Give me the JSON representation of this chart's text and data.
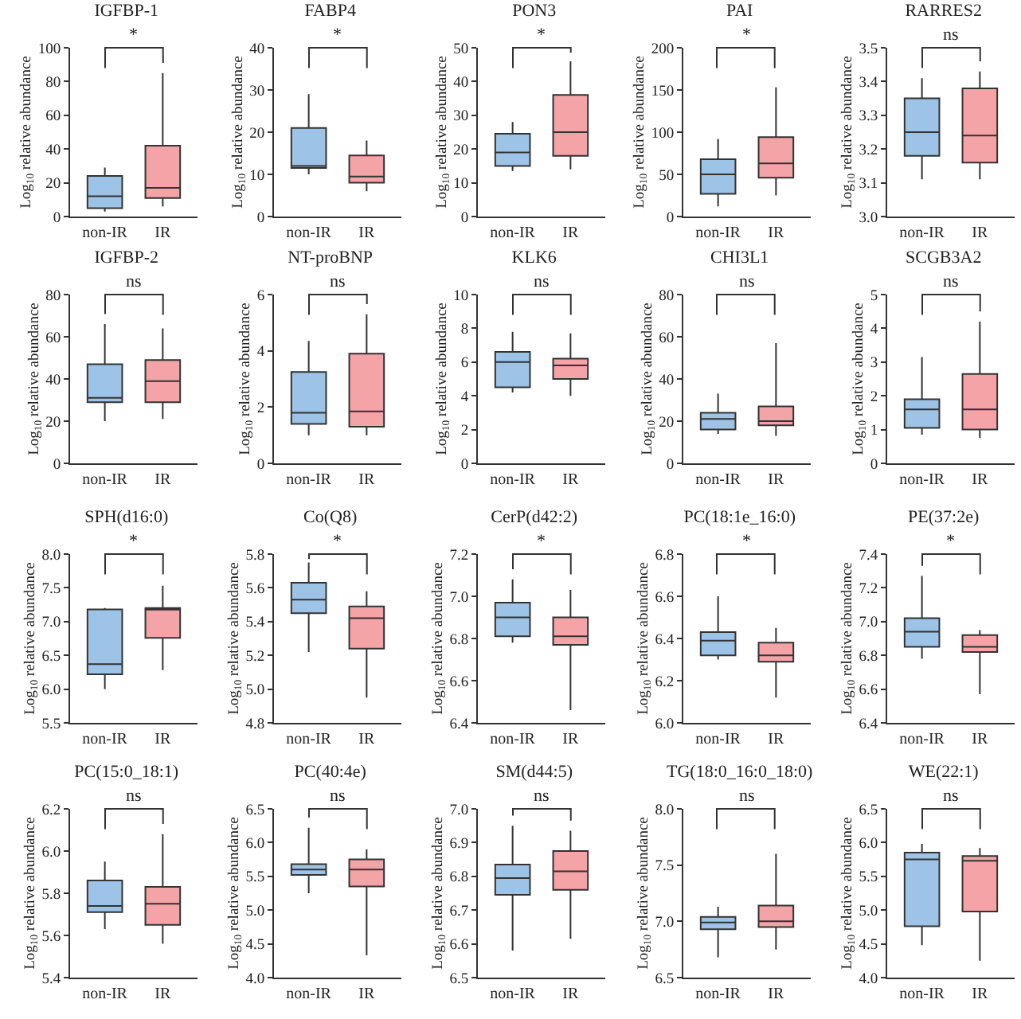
{
  "chart_data": [
    {
      "type": "box",
      "title": "IGFBP-1",
      "ylabel": "Log$_{10}$ relative abundance",
      "categories": [
        "non-IR",
        "IR"
      ],
      "colors": [
        "#9dc3e6",
        "#f4a3a6"
      ],
      "ylim": [
        0,
        100
      ],
      "yticks": [
        0,
        20,
        40,
        60,
        80,
        100
      ],
      "annotations": [
        "*"
      ],
      "boxes": [
        {
          "low": 3,
          "q1": 5,
          "median": 12,
          "q3": 24,
          "high": 29
        },
        {
          "low": 6,
          "q1": 11,
          "median": 17,
          "q3": 42,
          "high": 85
        }
      ]
    },
    {
      "type": "box",
      "title": "FABP4",
      "ylabel": "Log$_{10}$ relative abundance",
      "categories": [
        "non-IR",
        "IR"
      ],
      "colors": [
        "#9dc3e6",
        "#f4a3a6"
      ],
      "ylim": [
        0,
        40
      ],
      "yticks": [
        0,
        10,
        20,
        30,
        40
      ],
      "annotations": [
        "*"
      ],
      "boxes": [
        {
          "low": 10,
          "q1": 11.5,
          "median": 12,
          "q3": 21,
          "high": 29
        },
        {
          "low": 6,
          "q1": 8,
          "median": 9.5,
          "q3": 14.5,
          "high": 18
        }
      ]
    },
    {
      "type": "box",
      "title": "PON3",
      "ylabel": "Log$_{10}$ relative abundance",
      "categories": [
        "non-IR",
        "IR"
      ],
      "colors": [
        "#9dc3e6",
        "#f4a3a6"
      ],
      "ylim": [
        0,
        50
      ],
      "yticks": [
        0,
        10,
        20,
        30,
        40,
        50
      ],
      "annotations": [
        "*"
      ],
      "boxes": [
        {
          "low": 13.5,
          "q1": 15,
          "median": 19,
          "q3": 24.5,
          "high": 28
        },
        {
          "low": 14,
          "q1": 18,
          "median": 25,
          "q3": 36,
          "high": 46
        }
      ]
    },
    {
      "type": "box",
      "title": "PAI",
      "ylabel": "Log$_{10}$ relative abundance",
      "categories": [
        "non-IR",
        "IR"
      ],
      "colors": [
        "#9dc3e6",
        "#f4a3a6"
      ],
      "ylim": [
        0,
        200
      ],
      "yticks": [
        0,
        50,
        100,
        150,
        200
      ],
      "annotations": [
        "*"
      ],
      "boxes": [
        {
          "low": 12,
          "q1": 27,
          "median": 50,
          "q3": 68,
          "high": 92
        },
        {
          "low": 25,
          "q1": 46,
          "median": 63,
          "q3": 94,
          "high": 153
        }
      ]
    },
    {
      "type": "box",
      "title": "RARRES2",
      "ylabel": "Log$_{10}$ relative abundance",
      "categories": [
        "non-IR",
        "IR"
      ],
      "colors": [
        "#9dc3e6",
        "#f4a3a6"
      ],
      "ylim": [
        3.0,
        3.5
      ],
      "yticks": [
        {
          "value": 3.0,
          "label": "3.0"
        },
        3.1,
        3.2,
        3.3,
        3.4,
        3.5
      ],
      "annotations": [
        "ns"
      ],
      "boxes": [
        {
          "low": 3.11,
          "q1": 3.18,
          "median": 3.25,
          "q3": 3.35,
          "high": 3.41
        },
        {
          "low": 3.11,
          "q1": 3.16,
          "median": 3.24,
          "q3": 3.38,
          "high": 3.43
        }
      ]
    },
    {
      "type": "box",
      "title": "IGFBP-2",
      "ylabel": "Log$_{10}$ relative abundance",
      "categories": [
        "non-IR",
        "IR"
      ],
      "colors": [
        "#9dc3e6",
        "#f4a3a6"
      ],
      "ylim": [
        0,
        80
      ],
      "yticks": [
        0,
        20,
        40,
        60,
        80
      ],
      "annotations": [
        "ns"
      ],
      "boxes": [
        {
          "low": 20,
          "q1": 29,
          "median": 31,
          "q3": 47,
          "high": 66
        },
        {
          "low": 21,
          "q1": 29,
          "median": 39,
          "q3": 49,
          "high": 64
        }
      ]
    },
    {
      "type": "box",
      "title": "NT-proBNP",
      "ylabel": "Log$_{10}$ relative abundance",
      "categories": [
        "non-IR",
        "IR"
      ],
      "colors": [
        "#9dc3e6",
        "#f4a3a6"
      ],
      "ylim": [
        0,
        6
      ],
      "yticks": [
        0,
        2,
        4,
        6
      ],
      "annotations": [
        "ns"
      ],
      "boxes": [
        {
          "low": 1.0,
          "q1": 1.4,
          "median": 1.8,
          "q3": 3.25,
          "high": 4.35
        },
        {
          "low": 1.0,
          "q1": 1.3,
          "median": 1.85,
          "q3": 3.9,
          "high": 5.3
        }
      ]
    },
    {
      "type": "box",
      "title": "KLK6",
      "ylabel": "Log$_{10}$ relative abundance",
      "categories": [
        "non-IR",
        "IR"
      ],
      "colors": [
        "#9dc3e6",
        "#f4a3a6"
      ],
      "ylim": [
        0,
        10
      ],
      "yticks": [
        0,
        2,
        4,
        6,
        8,
        10
      ],
      "annotations": [
        "ns"
      ],
      "boxes": [
        {
          "low": 4.2,
          "q1": 4.5,
          "median": 6.0,
          "q3": 6.6,
          "high": 7.8
        },
        {
          "low": 4.0,
          "q1": 5.0,
          "median": 5.8,
          "q3": 6.2,
          "high": 7.7
        }
      ]
    },
    {
      "type": "box",
      "title": "CHI3L1",
      "ylabel": "Log$_{10}$ relative abundance",
      "categories": [
        "non-IR",
        "IR"
      ],
      "colors": [
        "#9dc3e6",
        "#f4a3a6"
      ],
      "ylim": [
        0,
        80
      ],
      "yticks": [
        0,
        20,
        40,
        60,
        80
      ],
      "annotations": [
        "ns"
      ],
      "boxes": [
        {
          "low": 14,
          "q1": 16,
          "median": 21,
          "q3": 24,
          "high": 33
        },
        {
          "low": 13,
          "q1": 18,
          "median": 20,
          "q3": 27,
          "high": 57
        }
      ]
    },
    {
      "type": "box",
      "title": "SCGB3A2",
      "ylabel": "Log$_{10}$ relative abundance",
      "categories": [
        "non-IR",
        "IR"
      ],
      "colors": [
        "#9dc3e6",
        "#f4a3a6"
      ],
      "ylim": [
        0,
        5
      ],
      "yticks": [
        0,
        1,
        2,
        3,
        4,
        5
      ],
      "annotations": [
        "ns"
      ],
      "boxes": [
        {
          "low": 0.85,
          "q1": 1.05,
          "median": 1.6,
          "q3": 1.9,
          "high": 3.15
        },
        {
          "low": 0.75,
          "q1": 1.0,
          "median": 1.6,
          "q3": 2.65,
          "high": 4.2
        }
      ]
    },
    {
      "type": "box",
      "title": "SPH(d16:0)",
      "ylabel": "Log$_{10}$ relative abundance",
      "categories": [
        "non-IR",
        "IR"
      ],
      "colors": [
        "#9dc3e6",
        "#f4a3a6"
      ],
      "ylim": [
        5.5,
        8.0
      ],
      "yticks": [
        5.5,
        {
          "value": 6,
          "label": "6.0"
        },
        6.5,
        {
          "value": 7,
          "label": "7.0"
        },
        7.5,
        {
          "value": 8,
          "label": "8.0"
        }
      ],
      "annotations": [
        "*"
      ],
      "boxes": [
        {
          "low": 6.0,
          "q1": 6.22,
          "median": 6.37,
          "q3": 7.18,
          "high": 7.2
        },
        {
          "low": 6.28,
          "q1": 6.76,
          "median": 7.19,
          "q3": 7.2,
          "high": 7.53
        }
      ]
    },
    {
      "type": "box",
      "title": "Co(Q8)",
      "ylabel": "Log$_{10}$ relative abundance",
      "categories": [
        "non-IR",
        "IR"
      ],
      "colors": [
        "#9dc3e6",
        "#f4a3a6"
      ],
      "ylim": [
        4.8,
        5.8
      ],
      "yticks": [
        4.8,
        {
          "value": 5,
          "label": "5.0"
        },
        5.2,
        5.4,
        5.6,
        5.8
      ],
      "annotations": [
        "*"
      ],
      "boxes": [
        {
          "low": 5.22,
          "q1": 5.45,
          "median": 5.53,
          "q3": 5.63,
          "high": 5.75
        },
        {
          "low": 4.95,
          "q1": 5.24,
          "median": 5.42,
          "q3": 5.49,
          "high": 5.58
        }
      ]
    },
    {
      "type": "box",
      "title": "CerP(d42:2)",
      "ylabel": "Log$_{10}$ relative abundance",
      "categories": [
        "non-IR",
        "IR"
      ],
      "colors": [
        "#9dc3e6",
        "#f4a3a6"
      ],
      "ylim": [
        6.4,
        7.2
      ],
      "yticks": [
        6.4,
        6.6,
        6.8,
        {
          "value": 7,
          "label": "7.0"
        },
        7.2
      ],
      "annotations": [
        "*"
      ],
      "boxes": [
        {
          "low": 6.78,
          "q1": 6.81,
          "median": 6.9,
          "q3": 6.97,
          "high": 7.08
        },
        {
          "low": 6.46,
          "q1": 6.77,
          "median": 6.81,
          "q3": 6.9,
          "high": 7.03
        }
      ]
    },
    {
      "type": "box",
      "title": "PC(18:1e_16:0)",
      "ylabel": "Log$_{10}$ relative abundance",
      "categories": [
        "non-IR",
        "IR"
      ],
      "colors": [
        "#9dc3e6",
        "#f4a3a6"
      ],
      "ylim": [
        6.0,
        6.8
      ],
      "yticks": [
        {
          "value": 6,
          "label": "6.0"
        },
        6.2,
        6.4,
        6.6,
        6.8
      ],
      "annotations": [
        "*"
      ],
      "boxes": [
        {
          "low": 6.3,
          "q1": 6.32,
          "median": 6.39,
          "q3": 6.43,
          "high": 6.6
        },
        {
          "low": 6.12,
          "q1": 6.29,
          "median": 6.32,
          "q3": 6.38,
          "high": 6.45
        }
      ]
    },
    {
      "type": "box",
      "title": "PE(37:2e)",
      "ylabel": "Log$_{10}$ relative abundance",
      "categories": [
        "non-IR",
        "IR"
      ],
      "colors": [
        "#9dc3e6",
        "#f4a3a6"
      ],
      "ylim": [
        6.4,
        7.4
      ],
      "yticks": [
        6.4,
        6.6,
        6.8,
        {
          "value": 7,
          "label": "7.0"
        },
        7.2,
        7.4
      ],
      "annotations": [
        "*"
      ],
      "boxes": [
        {
          "low": 6.78,
          "q1": 6.85,
          "median": 6.94,
          "q3": 7.02,
          "high": 7.27
        },
        {
          "low": 6.57,
          "q1": 6.82,
          "median": 6.85,
          "q3": 6.92,
          "high": 6.95
        }
      ]
    },
    {
      "type": "box",
      "title": "PC(15:0_18:1)",
      "ylabel": "Log$_{10}$ relative abundance",
      "categories": [
        "non-IR",
        "IR"
      ],
      "colors": [
        "#9dc3e6",
        "#f4a3a6"
      ],
      "ylim": [
        5.4,
        6.2
      ],
      "yticks": [
        5.4,
        5.6,
        5.8,
        {
          "value": 6,
          "label": "6.0"
        },
        6.2
      ],
      "annotations": [
        "ns"
      ],
      "boxes": [
        {
          "low": 5.63,
          "q1": 5.71,
          "median": 5.74,
          "q3": 5.86,
          "high": 5.95
        },
        {
          "low": 5.56,
          "q1": 5.65,
          "median": 5.75,
          "q3": 5.83,
          "high": 6.08
        }
      ]
    },
    {
      "type": "box",
      "title": "PC(40:4e)",
      "ylabel": "Log$_{10}$ relative abundance",
      "categories": [
        "non-IR",
        "IR"
      ],
      "colors": [
        "#9dc3e6",
        "#f4a3a6"
      ],
      "ylim": [
        4.0,
        6.5
      ],
      "yticks": [
        {
          "value": 4,
          "label": "4.0"
        },
        4.5,
        {
          "value": 5,
          "label": "5.0"
        },
        5.5,
        {
          "value": 6,
          "label": "6.0"
        },
        6.5
      ],
      "annotations": [
        "ns"
      ],
      "boxes": [
        {
          "low": 5.25,
          "q1": 5.52,
          "median": 5.6,
          "q3": 5.68,
          "high": 6.22
        },
        {
          "low": 4.33,
          "q1": 5.35,
          "median": 5.6,
          "q3": 5.75,
          "high": 5.9
        }
      ]
    },
    {
      "type": "box",
      "title": "SM(d44:5)",
      "ylabel": "Log$_{10}$ relative abundance",
      "categories": [
        "non-IR",
        "IR"
      ],
      "colors": [
        "#9dc3e6",
        "#f4a3a6"
      ],
      "ylim": [
        6.5,
        7.0
      ],
      "yticks": [
        6.5,
        6.6,
        6.7,
        6.8,
        6.9,
        {
          "value": 7,
          "label": "7.0"
        }
      ],
      "annotations": [
        "ns"
      ],
      "boxes": [
        {
          "low": 6.58,
          "q1": 6.745,
          "median": 6.795,
          "q3": 6.835,
          "high": 6.95
        },
        {
          "low": 6.615,
          "q1": 6.76,
          "median": 6.815,
          "q3": 6.875,
          "high": 6.935
        }
      ]
    },
    {
      "type": "box",
      "title": "TG(18:0_16:0_18:0)",
      "ylabel": "Log$_{10}$ relative abundance",
      "categories": [
        "non-IR",
        "IR"
      ],
      "colors": [
        "#9dc3e6",
        "#f4a3a6"
      ],
      "ylim": [
        6.5,
        8.0
      ],
      "yticks": [
        6.5,
        {
          "value": 7,
          "label": "7.0"
        },
        7.5,
        {
          "value": 8,
          "label": "8.0"
        }
      ],
      "annotations": [
        "ns"
      ],
      "boxes": [
        {
          "low": 6.68,
          "q1": 6.93,
          "median": 6.99,
          "q3": 7.04,
          "high": 7.13
        },
        {
          "low": 6.75,
          "q1": 6.95,
          "median": 7.0,
          "q3": 7.14,
          "high": 7.6
        }
      ]
    },
    {
      "type": "box",
      "title": "WE(22:1)",
      "ylabel": "Log$_{10}$ relative abundance",
      "categories": [
        "non-IR",
        "IR"
      ],
      "colors": [
        "#9dc3e6",
        "#f4a3a6"
      ],
      "ylim": [
        4.0,
        6.5
      ],
      "yticks": [
        {
          "value": 4,
          "label": "4.0"
        },
        4.5,
        {
          "value": 5,
          "label": "5.0"
        },
        5.5,
        {
          "value": 6,
          "label": "6.0"
        },
        6.5
      ],
      "annotations": [
        "ns"
      ],
      "boxes": [
        {
          "low": 4.48,
          "q1": 4.76,
          "median": 5.75,
          "q3": 5.85,
          "high": 5.98
        },
        {
          "low": 4.25,
          "q1": 4.98,
          "median": 5.73,
          "q3": 5.8,
          "high": 5.92
        }
      ]
    }
  ]
}
